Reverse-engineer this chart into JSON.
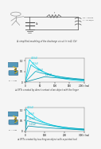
{
  "bg_color": "#f5f5f5",
  "panel_labels": [
    "① simplified modeling of the discharge circuit (r in Ω, Cb)",
    "② EFTs created by direct contact of an object with the finger",
    "③ EFTs created by touching an object with a pointed tool"
  ],
  "graph1": {
    "peaks": [
      1.05,
      0.8,
      0.5,
      0.25
    ],
    "rises": [
      15,
      20,
      35,
      65
    ],
    "falls": [
      60,
      80,
      120,
      170
    ],
    "labels": [
      "40 kV",
      "30 kV",
      "20 kV",
      "10 kV"
    ],
    "colors": [
      "#00d8f0",
      "#00c0d8",
      "#00a8c0",
      "#0090a8"
    ],
    "ylabel": "I (kA)",
    "xlabel": "t (ns)",
    "ylim": [
      0,
      1.1
    ],
    "xlim": [
      0,
      200
    ],
    "yticks": [
      0,
      0.5,
      1.0
    ],
    "xtick_vals": [
      0,
      50,
      100,
      150,
      200
    ],
    "xtick_labels": [
      "0",
      "50",
      "100",
      "150",
      "200 t (ns)"
    ]
  },
  "graph2": {
    "peaks": [
      1.05,
      0.75,
      0.5,
      0.25
    ],
    "rises": [
      5,
      7,
      10,
      15
    ],
    "falls": [
      100,
      140,
      190,
      240
    ],
    "labels": [
      "40 kV",
      "30 kV",
      "20 kV",
      "10 kV"
    ],
    "colors": [
      "#00d8f0",
      "#00c0d8",
      "#00a8c0",
      "#0090a8"
    ],
    "ylabel": "I (kA)",
    "xlabel": "t (ns)",
    "ylim": [
      0,
      1.1
    ],
    "xlim": [
      0,
      300
    ],
    "yticks": [
      0,
      0.5,
      1.0
    ],
    "xtick_vals": [
      0,
      100,
      200,
      300
    ],
    "xtick_labels": [
      "0",
      "100",
      "200",
      "300 t (ns)"
    ]
  },
  "curve_lw": 0.55,
  "label_fs": 2.0,
  "tick_fs": 2.0,
  "axis_fs": 2.2,
  "caption_fs": 1.9
}
